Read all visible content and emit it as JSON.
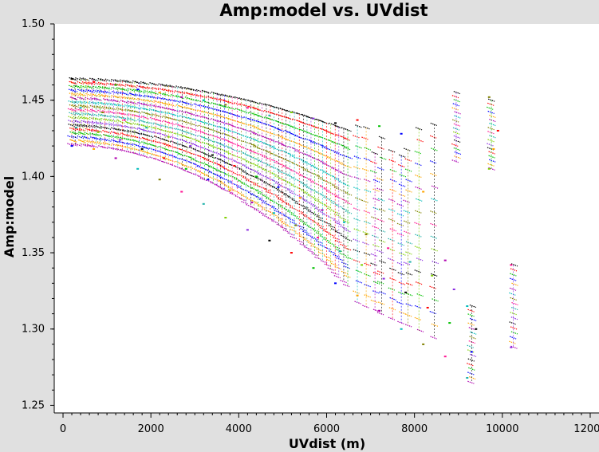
{
  "chart_data": {
    "type": "scatter",
    "title": "Amp:model vs. UVdist",
    "xlabel": "UVdist (m)",
    "ylabel": "Amp:model",
    "xlim": [
      -200,
      12200
    ],
    "ylim": [
      1.245,
      1.5
    ],
    "x_ticks": [
      0,
      2000,
      4000,
      6000,
      8000,
      10000,
      12000
    ],
    "y_ticks": [
      1.25,
      1.3,
      1.35,
      1.4,
      1.45,
      1.5
    ],
    "x_tick_labels": [
      "0",
      "2000",
      "4000",
      "6000",
      "8000",
      "10000",
      "12000"
    ],
    "y_tick_labels": [
      "1.25",
      "1.30",
      "1.35",
      "1.40",
      "1.45",
      "1.50"
    ],
    "grid": false,
    "legend": "none",
    "plot_background": "#ffffff",
    "frame_background": "#e0e0e0",
    "series_colors": [
      "#000000",
      "#ff0000",
      "#00c000",
      "#0000ff",
      "#ffa500",
      "#b000b0",
      "#00bbbb",
      "#808000",
      "#ff1493",
      "#20b2aa",
      "#7fd000",
      "#8a2be2"
    ],
    "series": [
      {
        "name": "",
        "x": [
          200,
          700,
          1200,
          1700,
          2200,
          2700,
          3200,
          3700,
          4200,
          4700,
          5200,
          5700,
          6200,
          6700,
          7200,
          7700,
          8200,
          8700,
          9200,
          9700,
          10200
        ],
        "y": [
          1.464,
          1.462,
          1.46,
          1.457,
          1.455,
          1.452,
          1.45,
          1.447,
          1.445,
          1.44,
          1.442,
          1.438,
          1.435,
          1.437,
          1.433,
          1.428,
          1.39,
          1.345,
          1.315,
          1.452,
          1.342
        ]
      },
      {
        "name": "",
        "x": [
          200,
          700,
          1200,
          1700,
          2200,
          2700,
          3200,
          3700,
          4200,
          4700,
          5200,
          5700,
          6200,
          6700,
          7200,
          7700,
          8200,
          8700,
          9200,
          9700,
          10200
        ],
        "y": [
          1.42,
          1.418,
          1.412,
          1.405,
          1.398,
          1.39,
          1.382,
          1.373,
          1.365,
          1.358,
          1.35,
          1.34,
          1.33,
          1.322,
          1.312,
          1.3,
          1.29,
          1.282,
          1.268,
          1.405,
          1.288
        ]
      },
      {
        "name": "",
        "x": [
          400,
          900,
          1400,
          1900,
          2400,
          2900,
          3400,
          3900,
          4400,
          4900,
          5400,
          5900,
          6400,
          6900,
          7400,
          7900,
          8400,
          8900,
          9400,
          9900
        ],
        "y": [
          1.445,
          1.442,
          1.437,
          1.432,
          1.426,
          1.42,
          1.414,
          1.407,
          1.4,
          1.393,
          1.386,
          1.378,
          1.37,
          1.362,
          1.353,
          1.344,
          1.335,
          1.326,
          1.3,
          1.43
        ]
      },
      {
        "name": "",
        "x": [
          300,
          800,
          1300,
          1800,
          2300,
          2800,
          3300,
          3800,
          4300,
          4800,
          5300,
          5800,
          6300,
          6800,
          7300,
          7800,
          8300,
          8800,
          9300,
          9800
        ],
        "y": [
          1.432,
          1.429,
          1.424,
          1.418,
          1.412,
          1.405,
          1.398,
          1.391,
          1.383,
          1.376,
          1.368,
          1.36,
          1.351,
          1.342,
          1.333,
          1.324,
          1.314,
          1.304,
          1.285,
          1.418
        ]
      }
    ]
  }
}
